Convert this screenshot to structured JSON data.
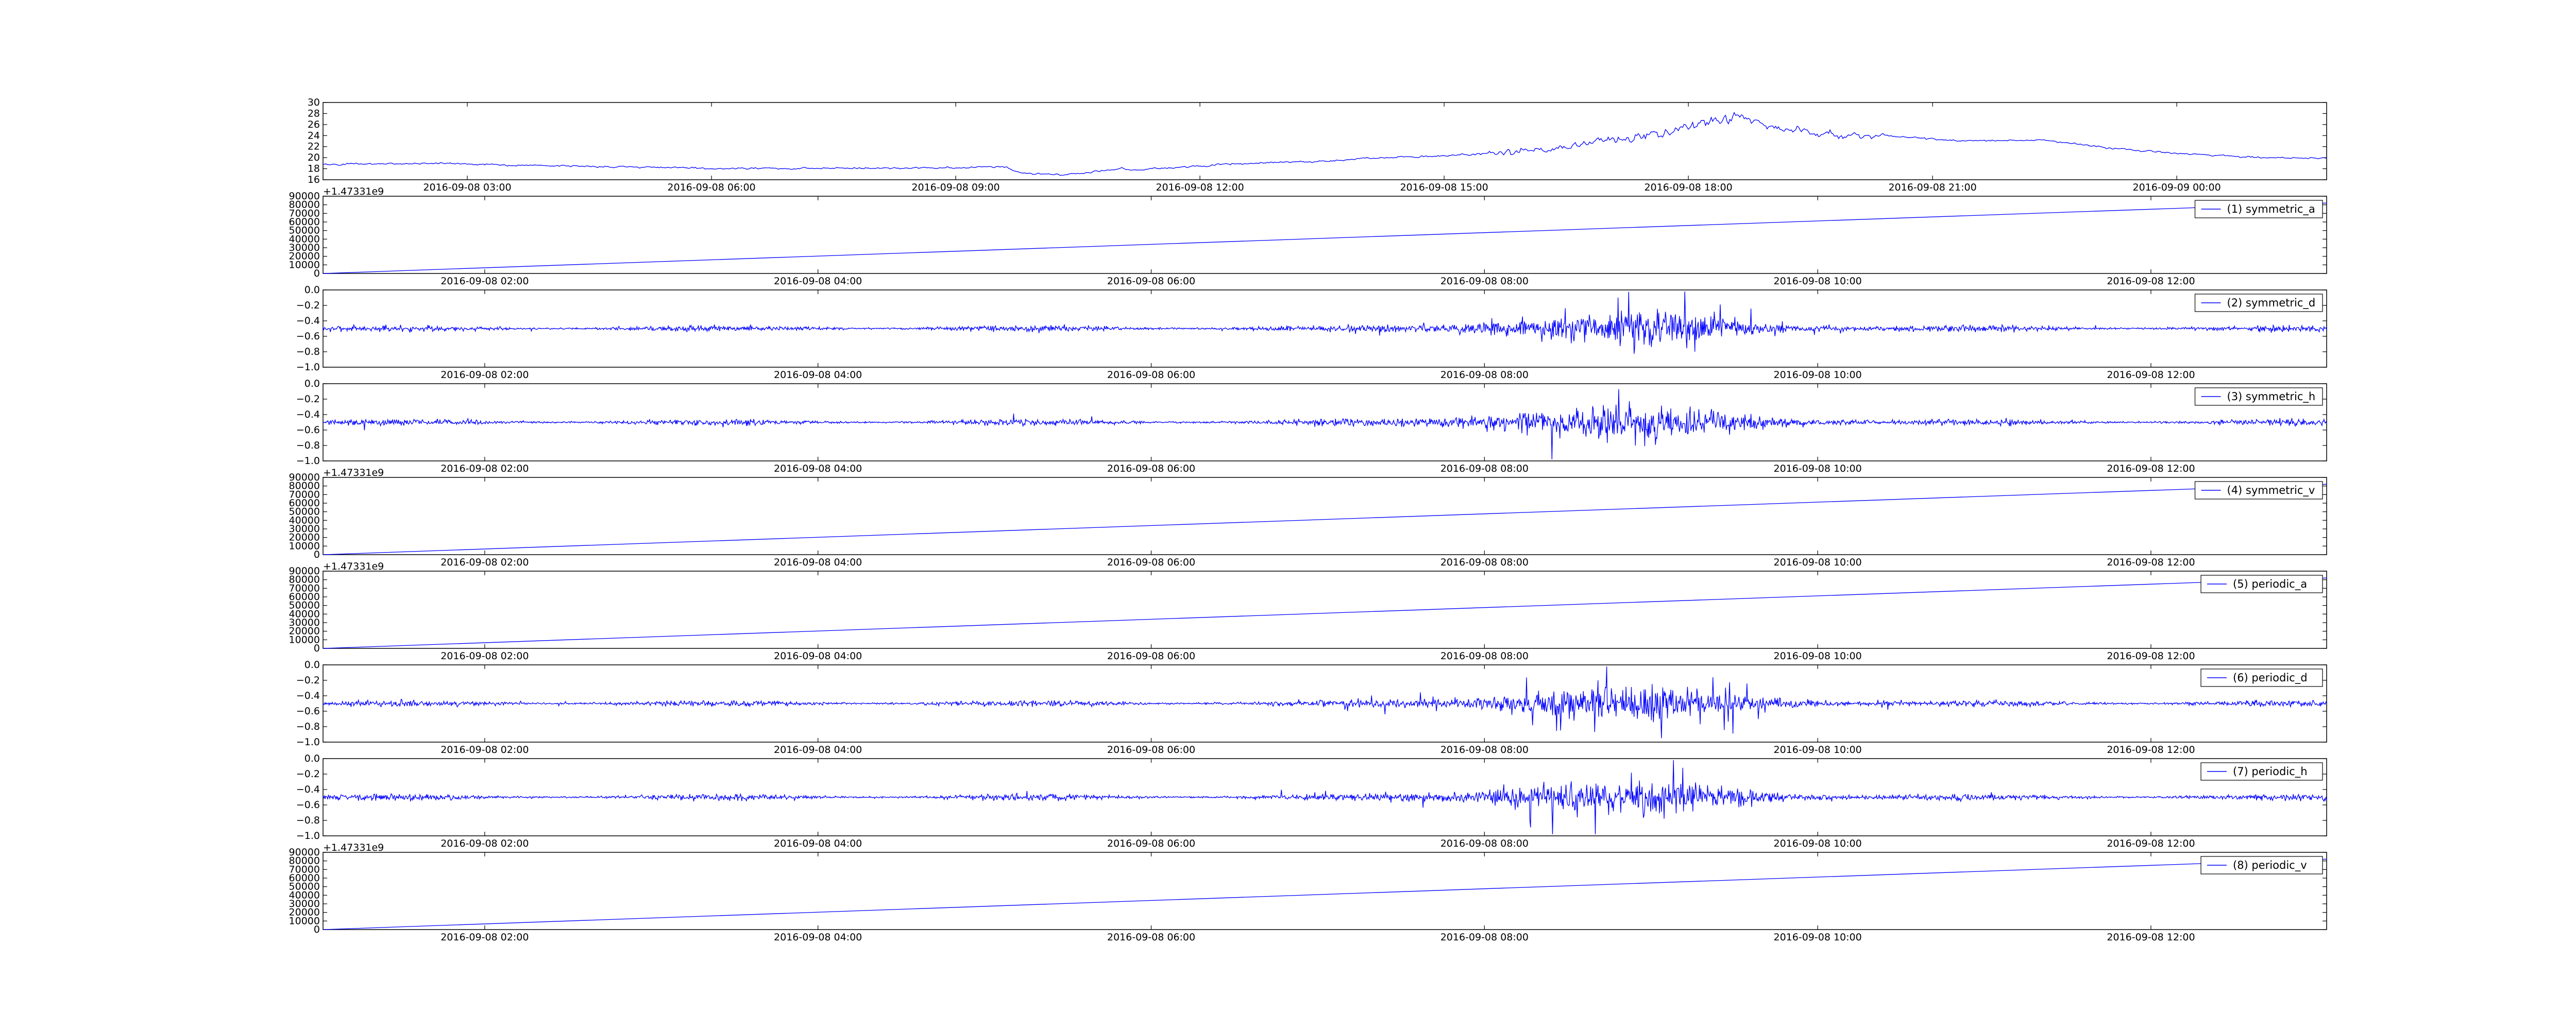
{
  "chart_data": [
    {
      "type": "line",
      "title": "",
      "legend": "",
      "offset_text": "",
      "xlabel": "",
      "ylabel": "",
      "x_ticks": [
        "2016-09-08 03:00",
        "2016-09-08 06:00",
        "2016-09-08 09:00",
        "2016-09-08 12:00",
        "2016-09-08 15:00",
        "2016-09-08 18:00",
        "2016-09-08 21:00",
        "2016-09-09 00:00"
      ],
      "ylim": [
        15,
        30
      ],
      "y_ticks": [
        "16",
        "18",
        "20",
        "22",
        "24",
        "26",
        "28",
        "30"
      ],
      "series_kind": "temperature",
      "color": "#0000ff"
    },
    {
      "type": "line",
      "legend": "(1) symmetric_a",
      "offset_text": "+1.47331e9",
      "x_ticks": [
        "2016-09-08 02:00",
        "2016-09-08 04:00",
        "2016-09-08 06:00",
        "2016-09-08 08:00",
        "2016-09-08 10:00",
        "2016-09-08 12:00"
      ],
      "ylim": [
        0,
        90000
      ],
      "y_ticks": [
        "0",
        "10000",
        "20000",
        "30000",
        "40000",
        "50000",
        "60000",
        "70000",
        "80000",
        "90000"
      ],
      "series_kind": "ramp",
      "ramp_end": 82000,
      "color": "#0000ff",
      "legend_placement": "top-right"
    },
    {
      "type": "line",
      "legend": "(2) symmetric_d",
      "offset_text": "",
      "x_ticks": [
        "2016-09-08 02:00",
        "2016-09-08 04:00",
        "2016-09-08 06:00",
        "2016-09-08 08:00",
        "2016-09-08 10:00",
        "2016-09-08 12:00"
      ],
      "ylim": [
        -1.0,
        0.0
      ],
      "y_ticks": [
        "−1.0",
        "−0.8",
        "−0.6",
        "−0.4",
        "−0.2",
        "0.0"
      ],
      "series_kind": "noise",
      "baseline": -0.5,
      "seed": 7,
      "color": "#0000ff",
      "legend_placement": "top-right"
    },
    {
      "type": "line",
      "legend": "(3) symmetric_h",
      "offset_text": "",
      "x_ticks": [
        "2016-09-08 02:00",
        "2016-09-08 04:00",
        "2016-09-08 06:00",
        "2016-09-08 08:00",
        "2016-09-08 10:00",
        "2016-09-08 12:00"
      ],
      "ylim": [
        -1.0,
        0.0
      ],
      "y_ticks": [
        "−1.0",
        "−0.8",
        "−0.6",
        "−0.4",
        "−0.2",
        "0.0"
      ],
      "series_kind": "noise",
      "baseline": -0.5,
      "seed": 13,
      "color": "#0000ff",
      "legend_placement": "top-right"
    },
    {
      "type": "line",
      "legend": "(4) symmetric_v",
      "offset_text": "+1.47331e9",
      "x_ticks": [
        "2016-09-08 02:00",
        "2016-09-08 04:00",
        "2016-09-08 06:00",
        "2016-09-08 08:00",
        "2016-09-08 10:00",
        "2016-09-08 12:00"
      ],
      "ylim": [
        0,
        90000
      ],
      "y_ticks": [
        "0",
        "10000",
        "20000",
        "30000",
        "40000",
        "50000",
        "60000",
        "70000",
        "80000",
        "90000"
      ],
      "series_kind": "ramp",
      "ramp_end": 82000,
      "color": "#0000ff",
      "legend_placement": "top-right"
    },
    {
      "type": "line",
      "legend": "(5) periodic_a",
      "offset_text": "+1.47331e9",
      "x_ticks": [
        "2016-09-08 02:00",
        "2016-09-08 04:00",
        "2016-09-08 06:00",
        "2016-09-08 08:00",
        "2016-09-08 10:00",
        "2016-09-08 12:00"
      ],
      "ylim": [
        0,
        90000
      ],
      "y_ticks": [
        "0",
        "10000",
        "20000",
        "30000",
        "40000",
        "50000",
        "60000",
        "70000",
        "80000",
        "90000"
      ],
      "series_kind": "ramp",
      "ramp_end": 82000,
      "color": "#0000ff",
      "legend_placement": "top-right"
    },
    {
      "type": "line",
      "legend": "(6) periodic_d",
      "offset_text": "",
      "x_ticks": [
        "2016-09-08 02:00",
        "2016-09-08 04:00",
        "2016-09-08 06:00",
        "2016-09-08 08:00",
        "2016-09-08 10:00",
        "2016-09-08 12:00"
      ],
      "ylim": [
        -1.0,
        0.0
      ],
      "y_ticks": [
        "−1.0",
        "−0.8",
        "−0.6",
        "−0.4",
        "−0.2",
        "0.0"
      ],
      "series_kind": "noise",
      "baseline": -0.5,
      "seed": 21,
      "color": "#0000ff",
      "legend_placement": "top-right"
    },
    {
      "type": "line",
      "legend": "(7) periodic_h",
      "offset_text": "",
      "x_ticks": [
        "2016-09-08 02:00",
        "2016-09-08 04:00",
        "2016-09-08 06:00",
        "2016-09-08 08:00",
        "2016-09-08 10:00",
        "2016-09-08 12:00"
      ],
      "ylim": [
        -1.0,
        0.0
      ],
      "y_ticks": [
        "−1.0",
        "−0.8",
        "−0.6",
        "−0.4",
        "−0.2",
        "0.0"
      ],
      "series_kind": "noise",
      "baseline": -0.5,
      "seed": 29,
      "color": "#0000ff",
      "legend_placement": "top-right"
    },
    {
      "type": "line",
      "legend": "(8) periodic_v",
      "offset_text": "+1.47331e9",
      "x_ticks": [
        "2016-09-08 02:00",
        "2016-09-08 04:00",
        "2016-09-08 06:00",
        "2016-09-08 08:00",
        "2016-09-08 10:00",
        "2016-09-08 12:00"
      ],
      "ylim": [
        0,
        90000
      ],
      "y_ticks": [
        "0",
        "10000",
        "20000",
        "30000",
        "40000",
        "50000",
        "60000",
        "70000",
        "80000",
        "90000"
      ],
      "series_kind": "ramp",
      "ramp_end": 82000,
      "color": "#0000ff",
      "legend_placement": "top-right"
    }
  ]
}
